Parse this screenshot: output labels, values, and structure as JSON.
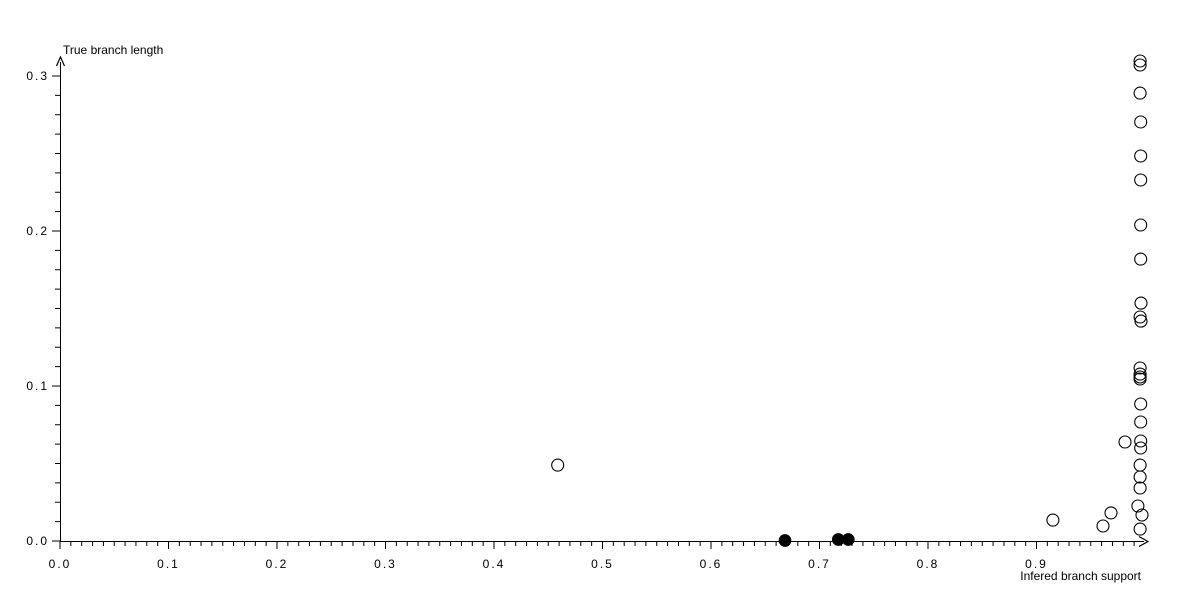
{
  "figure": {
    "background": "#ffffff",
    "axis_color": "#000000",
    "marker_color": "#000000"
  },
  "chart_data": {
    "type": "scatter",
    "title": "",
    "xlabel": "Infered branch support",
    "ylabel": "True branch length",
    "xlim": [
      0.0,
      1.003
    ],
    "ylim": [
      0.0,
      0.312
    ],
    "grid": false,
    "legend": null,
    "x_tick_labels": [
      "0.0",
      "0.1",
      "0.2",
      "0.3",
      "0.4",
      "0.5",
      "0.6",
      "0.7",
      "0.8",
      "0.9"
    ],
    "x_major_step": 0.1,
    "x_minor_per_major": 10,
    "x_minor_extent": 0.99,
    "y_tick_labels": [
      "0.0",
      "0.1",
      "0.2",
      "0.3"
    ],
    "y_major_step": 0.1,
    "y_minor_per_major": 8,
    "y_minor_extent": 0.3,
    "series": [
      {
        "name": "open-circles",
        "marker": "circle-open",
        "color": "#000000",
        "points": [
          [
            0.9955,
            0.3097
          ],
          [
            0.9955,
            0.3071
          ],
          [
            0.9955,
            0.289
          ],
          [
            0.996,
            0.2703
          ],
          [
            0.996,
            0.2484
          ],
          [
            0.996,
            0.2329
          ],
          [
            0.996,
            0.2039
          ],
          [
            0.996,
            0.1819
          ],
          [
            0.9963,
            0.1535
          ],
          [
            0.9955,
            0.1445
          ],
          [
            0.9963,
            0.1419
          ],
          [
            0.9955,
            0.1116
          ],
          [
            0.9955,
            0.1077
          ],
          [
            0.9955,
            0.1058
          ],
          [
            0.9955,
            0.1045
          ],
          [
            0.996,
            0.0884
          ],
          [
            0.996,
            0.0768
          ],
          [
            0.996,
            0.0645
          ],
          [
            0.996,
            0.06
          ],
          [
            0.9955,
            0.049
          ],
          [
            0.9955,
            0.0413
          ],
          [
            0.9955,
            0.0342
          ],
          [
            0.9935,
            0.0226
          ],
          [
            0.9972,
            0.0168
          ],
          [
            0.9955,
            0.0077
          ],
          [
            0.9816,
            0.0639
          ],
          [
            0.9687,
            0.0181
          ],
          [
            0.9613,
            0.0097
          ],
          [
            0.9151,
            0.0135
          ],
          [
            0.4587,
            0.049
          ]
        ]
      },
      {
        "name": "filled-circles",
        "marker": "circle-filled",
        "color": "#000000",
        "points": [
          [
            0.6682,
            0.0003
          ],
          [
            0.7173,
            0.001
          ],
          [
            0.7265,
            0.001
          ]
        ]
      }
    ]
  }
}
